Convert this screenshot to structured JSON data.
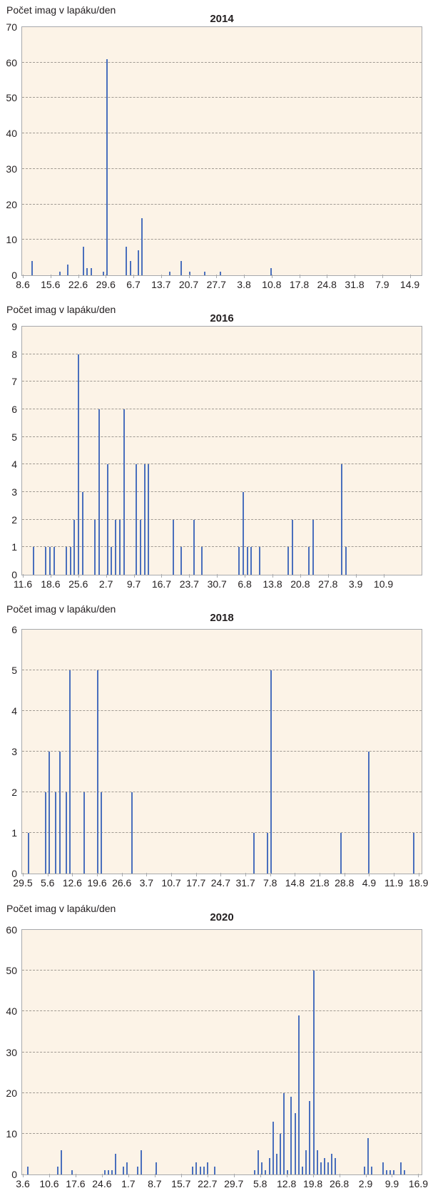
{
  "ylabel": "Počet imag v lapáku/den",
  "colors": {
    "bar": "#4a6fbd",
    "plot_bg": "#fcf3e7",
    "grid": "#a09a92",
    "axis": "#a7a9ac"
  },
  "chart_data": [
    {
      "type": "bar",
      "title": "2014",
      "xlabel": "",
      "ylabel": "Počet imag v lapáku/den",
      "ylim": [
        0,
        70
      ],
      "yticks": [
        0,
        10,
        20,
        30,
        40,
        50,
        60,
        70
      ],
      "grid": true,
      "xtick_labels": [
        "8.6",
        "15.6",
        "22.6",
        "29.6",
        "6.7",
        "13.7",
        "20.7",
        "27.7",
        "3.8",
        "10.8",
        "17.8",
        "24.8",
        "31.8",
        "7.9",
        "14.9"
      ],
      "bars": [
        {
          "pos": 0.024,
          "value": 4
        },
        {
          "pos": 0.093,
          "value": 1
        },
        {
          "pos": 0.112,
          "value": 3
        },
        {
          "pos": 0.151,
          "value": 8
        },
        {
          "pos": 0.161,
          "value": 2
        },
        {
          "pos": 0.171,
          "value": 2
        },
        {
          "pos": 0.201,
          "value": 1
        },
        {
          "pos": 0.211,
          "value": 61
        },
        {
          "pos": 0.259,
          "value": 8
        },
        {
          "pos": 0.269,
          "value": 4
        },
        {
          "pos": 0.289,
          "value": 7
        },
        {
          "pos": 0.298,
          "value": 16
        },
        {
          "pos": 0.367,
          "value": 1
        },
        {
          "pos": 0.397,
          "value": 4
        },
        {
          "pos": 0.417,
          "value": 1
        },
        {
          "pos": 0.456,
          "value": 1
        },
        {
          "pos": 0.495,
          "value": 1
        },
        {
          "pos": 0.622,
          "value": 2
        }
      ]
    },
    {
      "type": "bar",
      "title": "2016",
      "xlabel": "",
      "ylabel": "Počet imag v lapáku/den",
      "ylim": [
        0,
        9
      ],
      "yticks": [
        0,
        1,
        2,
        3,
        4,
        5,
        6,
        7,
        8,
        9
      ],
      "grid": true,
      "xtick_labels": [
        "11.6",
        "18.6",
        "25.6",
        "2.7",
        "9.7",
        "16.7",
        "23.7",
        "30.7",
        "6.8",
        "13.8",
        "20.8",
        "27.8",
        "3.9",
        "10.9"
      ],
      "bars": [
        {
          "pos": 0.026,
          "value": 1
        },
        {
          "pos": 0.057,
          "value": 1
        },
        {
          "pos": 0.067,
          "value": 1
        },
        {
          "pos": 0.078,
          "value": 1
        },
        {
          "pos": 0.109,
          "value": 1
        },
        {
          "pos": 0.119,
          "value": 1
        },
        {
          "pos": 0.129,
          "value": 2
        },
        {
          "pos": 0.14,
          "value": 8
        },
        {
          "pos": 0.15,
          "value": 3
        },
        {
          "pos": 0.181,
          "value": 2
        },
        {
          "pos": 0.191,
          "value": 6
        },
        {
          "pos": 0.212,
          "value": 4
        },
        {
          "pos": 0.222,
          "value": 1
        },
        {
          "pos": 0.233,
          "value": 2
        },
        {
          "pos": 0.243,
          "value": 2
        },
        {
          "pos": 0.253,
          "value": 6
        },
        {
          "pos": 0.284,
          "value": 4
        },
        {
          "pos": 0.295,
          "value": 2
        },
        {
          "pos": 0.305,
          "value": 4
        },
        {
          "pos": 0.315,
          "value": 4
        },
        {
          "pos": 0.377,
          "value": 2
        },
        {
          "pos": 0.397,
          "value": 1
        },
        {
          "pos": 0.428,
          "value": 2
        },
        {
          "pos": 0.449,
          "value": 1
        },
        {
          "pos": 0.541,
          "value": 1
        },
        {
          "pos": 0.551,
          "value": 3
        },
        {
          "pos": 0.562,
          "value": 1
        },
        {
          "pos": 0.572,
          "value": 1
        },
        {
          "pos": 0.592,
          "value": 1
        },
        {
          "pos": 0.665,
          "value": 1
        },
        {
          "pos": 0.675,
          "value": 2
        },
        {
          "pos": 0.716,
          "value": 1
        },
        {
          "pos": 0.727,
          "value": 2
        },
        {
          "pos": 0.799,
          "value": 4
        },
        {
          "pos": 0.809,
          "value": 1
        }
      ]
    },
    {
      "type": "bar",
      "title": "2018",
      "xlabel": "",
      "ylabel": "Počet imag v lapáku/den",
      "ylim": [
        0,
        6
      ],
      "yticks": [
        0,
        1,
        2,
        3,
        4,
        5,
        6
      ],
      "grid": true,
      "xtick_labels": [
        "29.5",
        "5.6",
        "12.6",
        "19.6",
        "26.6",
        "3.7",
        "10.7",
        "17.7",
        "24.7",
        "31.7",
        "7.8",
        "14.8",
        "21.8",
        "28.8",
        "4.9",
        "11.9",
        "18.9"
      ],
      "bars": [
        {
          "pos": 0.014,
          "value": 1
        },
        {
          "pos": 0.057,
          "value": 2
        },
        {
          "pos": 0.066,
          "value": 3
        },
        {
          "pos": 0.083,
          "value": 2
        },
        {
          "pos": 0.092,
          "value": 3
        },
        {
          "pos": 0.109,
          "value": 2
        },
        {
          "pos": 0.117,
          "value": 5
        },
        {
          "pos": 0.153,
          "value": 2
        },
        {
          "pos": 0.187,
          "value": 5
        },
        {
          "pos": 0.196,
          "value": 2
        },
        {
          "pos": 0.274,
          "value": 2
        },
        {
          "pos": 0.578,
          "value": 1
        },
        {
          "pos": 0.613,
          "value": 1
        },
        {
          "pos": 0.622,
          "value": 5
        },
        {
          "pos": 0.796,
          "value": 1
        },
        {
          "pos": 0.866,
          "value": 3
        },
        {
          "pos": 0.979,
          "value": 1
        }
      ]
    },
    {
      "type": "bar",
      "title": "2020",
      "xlabel": "",
      "ylabel": "Počet imag v lapáku/den",
      "ylim": [
        0,
        60
      ],
      "yticks": [
        0,
        10,
        20,
        30,
        40,
        50,
        60
      ],
      "grid": true,
      "xtick_labels": [
        "3.6",
        "10.6",
        "17.6",
        "24.6",
        "1.7",
        "8.7",
        "15.7",
        "22.7",
        "29.7",
        "5.8",
        "12.8",
        "19.8",
        "26.8",
        "2.9",
        "9.9",
        "16.9"
      ],
      "bars": [
        {
          "pos": 0.013,
          "value": 2
        },
        {
          "pos": 0.087,
          "value": 2
        },
        {
          "pos": 0.096,
          "value": 6
        },
        {
          "pos": 0.123,
          "value": 1
        },
        {
          "pos": 0.205,
          "value": 1
        },
        {
          "pos": 0.214,
          "value": 1
        },
        {
          "pos": 0.224,
          "value": 1
        },
        {
          "pos": 0.233,
          "value": 5
        },
        {
          "pos": 0.251,
          "value": 2
        },
        {
          "pos": 0.26,
          "value": 3
        },
        {
          "pos": 0.288,
          "value": 2
        },
        {
          "pos": 0.297,
          "value": 6
        },
        {
          "pos": 0.334,
          "value": 3
        },
        {
          "pos": 0.425,
          "value": 2
        },
        {
          "pos": 0.434,
          "value": 3
        },
        {
          "pos": 0.444,
          "value": 2
        },
        {
          "pos": 0.453,
          "value": 2
        },
        {
          "pos": 0.462,
          "value": 3
        },
        {
          "pos": 0.48,
          "value": 2
        },
        {
          "pos": 0.581,
          "value": 1
        },
        {
          "pos": 0.59,
          "value": 6
        },
        {
          "pos": 0.599,
          "value": 3
        },
        {
          "pos": 0.608,
          "value": 1
        },
        {
          "pos": 0.618,
          "value": 4
        },
        {
          "pos": 0.627,
          "value": 13
        },
        {
          "pos": 0.636,
          "value": 5
        },
        {
          "pos": 0.645,
          "value": 10
        },
        {
          "pos": 0.654,
          "value": 20
        },
        {
          "pos": 0.663,
          "value": 1
        },
        {
          "pos": 0.672,
          "value": 19
        },
        {
          "pos": 0.682,
          "value": 15
        },
        {
          "pos": 0.691,
          "value": 39
        },
        {
          "pos": 0.7,
          "value": 2
        },
        {
          "pos": 0.709,
          "value": 6
        },
        {
          "pos": 0.718,
          "value": 18
        },
        {
          "pos": 0.728,
          "value": 50
        },
        {
          "pos": 0.737,
          "value": 6
        },
        {
          "pos": 0.746,
          "value": 3
        },
        {
          "pos": 0.755,
          "value": 4
        },
        {
          "pos": 0.764,
          "value": 3
        },
        {
          "pos": 0.773,
          "value": 5
        },
        {
          "pos": 0.782,
          "value": 4
        },
        {
          "pos": 0.856,
          "value": 2
        },
        {
          "pos": 0.865,
          "value": 9
        },
        {
          "pos": 0.874,
          "value": 2
        },
        {
          "pos": 0.902,
          "value": 3
        },
        {
          "pos": 0.911,
          "value": 1
        },
        {
          "pos": 0.92,
          "value": 1
        },
        {
          "pos": 0.929,
          "value": 1
        },
        {
          "pos": 0.947,
          "value": 3
        },
        {
          "pos": 0.956,
          "value": 1
        }
      ]
    }
  ]
}
